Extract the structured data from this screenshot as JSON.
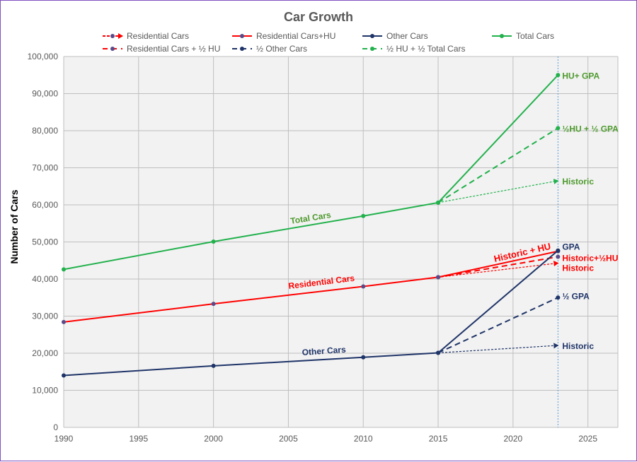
{
  "chart_data": {
    "type": "line",
    "title": "Car Growth",
    "xlabel": "",
    "ylabel": "Number of Cars",
    "xlim": [
      1990,
      2027
    ],
    "ylim": [
      0,
      100000
    ],
    "x_ticks": [
      1990,
      1995,
      2000,
      2005,
      2010,
      2015,
      2020,
      2025
    ],
    "y_ticks": [
      "0",
      "10,000",
      "20,000",
      "30,000",
      "40,000",
      "50,000",
      "60,000",
      "70,000",
      "80,000",
      "90,000",
      "100,000"
    ],
    "grid": true,
    "legend_position": "top",
    "reference_line_x": 2023,
    "colors": {
      "residential": "#ff0000",
      "other": "#1f3468",
      "total": "#22b14c",
      "total_label": "#4e9a2e",
      "refline": "#5b9bd5",
      "background": "#f2f2f2",
      "grid": "#bfbfbf"
    },
    "series": [
      {
        "name": "Residential Cars",
        "color": "#ff0000",
        "style": "dotted-arrow",
        "x": [
          2015,
          2023
        ],
        "y": [
          40500,
          44300
        ],
        "end_label": "Historic"
      },
      {
        "name": "Residential Cars+HU",
        "color": "#ff0000",
        "style": "solid",
        "x": [
          1990,
          2000,
          2010,
          2015,
          2023
        ],
        "y": [
          28400,
          33300,
          38000,
          40500,
          47500
        ],
        "end_label": "Historic + HU",
        "line_label": "Residential Cars"
      },
      {
        "name": "Other Cars",
        "color": "#1f3468",
        "style": "solid",
        "x": [
          1990,
          2000,
          2010,
          2015,
          2023
        ],
        "y": [
          14000,
          16600,
          18900,
          20100,
          47700
        ],
        "end_label": "GPA",
        "line_label": "Other Cars"
      },
      {
        "name": "Total Cars",
        "color": "#22b14c",
        "style": "solid",
        "x": [
          1990,
          2000,
          2010,
          2015,
          2023
        ],
        "y": [
          42600,
          50100,
          57000,
          60600,
          95000
        ],
        "end_label": "HU+ GPA",
        "line_label": "Total Cars"
      },
      {
        "name": "Residential Cars + ½ HU",
        "color": "#ff0000",
        "style": "dashed",
        "x": [
          2015,
          2023
        ],
        "y": [
          40500,
          46000
        ],
        "end_label": "Historic+½HU"
      },
      {
        "name": "½ Other Cars",
        "color": "#1f3468",
        "style": "dashed",
        "x": [
          2015,
          2023
        ],
        "y": [
          20100,
          35000
        ],
        "end_label": "½ GPA"
      },
      {
        "name": "½ HU + ½ Total Cars",
        "color": "#22b14c",
        "style": "dashed",
        "x": [
          2015,
          2023
        ],
        "y": [
          60600,
          80700
        ],
        "end_label": "½HU + ½ GPA"
      },
      {
        "name": "Other Cars historic",
        "color": "#1f3468",
        "style": "dotted-arrow",
        "legend": false,
        "x": [
          2015,
          2023
        ],
        "y": [
          20100,
          22100
        ],
        "end_label": "Historic"
      },
      {
        "name": "Total Cars historic",
        "color": "#22b14c",
        "style": "dotted-arrow",
        "legend": false,
        "x": [
          2015,
          2023
        ],
        "y": [
          60600,
          66500
        ],
        "end_label": "Historic"
      }
    ]
  }
}
